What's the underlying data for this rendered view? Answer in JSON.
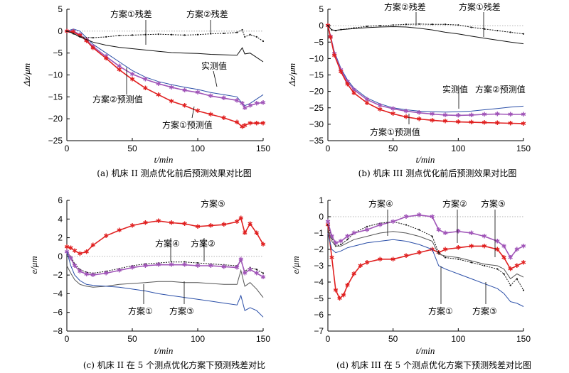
{
  "chart_data": [
    {
      "type": "line",
      "caption": "(a) 机床 II 测点优化前后预测效果对比图",
      "xlabel": "t/min",
      "ylabel": "Δz/μm",
      "xlim": [
        0,
        150
      ],
      "ylim": [
        -25,
        5
      ],
      "xticks": [
        0,
        50,
        100,
        150
      ],
      "yticks": [
        5,
        0,
        -5,
        -10,
        -15,
        -20,
        -25
      ],
      "series": [
        {
          "name": "实测值",
          "color": "#2b4fa8",
          "marker": "none",
          "x": [
            0,
            5,
            10,
            15,
            20,
            30,
            40,
            50,
            60,
            70,
            80,
            90,
            100,
            110,
            120,
            130,
            134,
            136,
            140,
            145,
            150
          ],
          "y": [
            0,
            0.5,
            0,
            -1.5,
            -3,
            -5,
            -7,
            -9,
            -10.5,
            -11.5,
            -12.2,
            -12.8,
            -13.3,
            -14,
            -14.5,
            -15,
            -16.5,
            -17,
            -16.5,
            -15.5,
            -14.5
          ]
        },
        {
          "name": "方案②预测值",
          "color": "#a055b8",
          "marker": "star",
          "x": [
            0,
            5,
            10,
            15,
            20,
            30,
            40,
            50,
            60,
            70,
            80,
            90,
            100,
            110,
            120,
            130,
            134,
            136,
            140,
            145,
            150
          ],
          "y": [
            0,
            0,
            -0.8,
            -2,
            -3.5,
            -5.8,
            -8,
            -9.8,
            -11,
            -12,
            -12.8,
            -13.5,
            -14,
            -14.8,
            -15.3,
            -15.8,
            -16.5,
            -17.5,
            -17,
            -16.5,
            -16.3
          ]
        },
        {
          "name": "方案①预测值",
          "color": "#e02020",
          "marker": "star",
          "x": [
            0,
            5,
            10,
            15,
            20,
            30,
            40,
            50,
            60,
            70,
            80,
            90,
            100,
            110,
            120,
            130,
            134,
            136,
            140,
            145,
            150
          ],
          "y": [
            0,
            -0.2,
            -1,
            -2.2,
            -3.8,
            -6.2,
            -8.8,
            -11,
            -13,
            -14.5,
            -16,
            -17,
            -18.2,
            -19,
            -19.8,
            -20.8,
            -21.8,
            -21.5,
            -21,
            -21,
            -21
          ]
        },
        {
          "name": "方案①残差",
          "color": "#111111",
          "marker": "none",
          "x": [
            0,
            5,
            10,
            20,
            30,
            40,
            50,
            60,
            70,
            80,
            90,
            100,
            110,
            120,
            130,
            134,
            136,
            140,
            145,
            150
          ],
          "y": [
            0,
            -0.5,
            -1.3,
            -2.5,
            -3.2,
            -3.7,
            -4,
            -4.3,
            -4.6,
            -4.9,
            -5,
            -5.1,
            -5.3,
            -5.4,
            -5.5,
            -3.8,
            -5.2,
            -5,
            -6,
            -7
          ]
        },
        {
          "name": "方案②残差",
          "color": "#111111",
          "marker": "dot",
          "x": [
            0,
            5,
            10,
            20,
            30,
            40,
            50,
            60,
            70,
            80,
            90,
            100,
            110,
            120,
            130,
            134,
            136,
            140,
            145,
            150
          ],
          "y": [
            0,
            -0.6,
            -1.3,
            -1.5,
            -1.3,
            -1,
            -0.9,
            -0.8,
            -0.7,
            -0.8,
            -0.9,
            -0.8,
            -0.6,
            -0.5,
            -0.3,
            0.3,
            -1.3,
            -0.8,
            -1.3,
            -2.3
          ]
        }
      ],
      "annotations": [
        "方案①残差",
        "方案②残差",
        "实测值",
        "方案②预测值",
        "方案①预测值"
      ]
    },
    {
      "type": "line",
      "caption": "(b) 机床 III 测点优化前后预测效果对比图",
      "xlabel": "t/min",
      "ylabel": "Δz/μm",
      "xlim": [
        0,
        150
      ],
      "ylim": [
        -35,
        5
      ],
      "xticks": [
        0,
        50,
        100,
        150
      ],
      "yticks": [
        5,
        0,
        -5,
        -10,
        -15,
        -20,
        -25,
        -30,
        -35
      ],
      "series": [
        {
          "name": "实测值",
          "color": "#2b4fa8",
          "marker": "none",
          "x": [
            0,
            2,
            5,
            10,
            15,
            20,
            30,
            40,
            50,
            60,
            70,
            80,
            90,
            100,
            110,
            120,
            130,
            140,
            150
          ],
          "y": [
            0,
            -3,
            -8,
            -13,
            -16.5,
            -19,
            -22,
            -23.8,
            -25,
            -25.6,
            -26,
            -26.2,
            -26.3,
            -26.2,
            -26,
            -25.6,
            -25.2,
            -24.8,
            -24.5
          ]
        },
        {
          "name": "方案②预测值",
          "color": "#a055b8",
          "marker": "star",
          "x": [
            0,
            2,
            5,
            10,
            15,
            20,
            30,
            40,
            50,
            60,
            70,
            80,
            90,
            100,
            110,
            120,
            130,
            140,
            150
          ],
          "y": [
            0,
            -3.3,
            -8.5,
            -13.5,
            -17,
            -19.5,
            -22.5,
            -24.3,
            -25.3,
            -26,
            -26.5,
            -26.9,
            -27.2,
            -27.3,
            -27.2,
            -27,
            -26.9,
            -27,
            -27
          ]
        },
        {
          "name": "方案①预测值",
          "color": "#e02020",
          "marker": "star",
          "x": [
            0,
            2,
            5,
            10,
            15,
            20,
            30,
            40,
            50,
            60,
            70,
            80,
            90,
            100,
            110,
            120,
            130,
            140,
            150
          ],
          "y": [
            0,
            -3.5,
            -9,
            -14,
            -17.8,
            -20.5,
            -23.5,
            -25.5,
            -26.8,
            -27.8,
            -28.4,
            -28.8,
            -29.1,
            -29.3,
            -29.4,
            -29.5,
            -29.6,
            -29.7,
            -29.8
          ]
        },
        {
          "name": "方案②残差",
          "color": "#111111",
          "marker": "dot",
          "x": [
            0,
            3,
            6,
            10,
            20,
            30,
            40,
            50,
            60,
            70,
            80,
            90,
            100,
            110,
            120,
            130,
            140,
            150
          ],
          "y": [
            0,
            -1.3,
            -1.5,
            -1.2,
            -0.7,
            -0.2,
            0,
            0.2,
            0.4,
            0.5,
            0.4,
            0.4,
            0.2,
            -0.5,
            -1,
            -1.5,
            -2,
            -2.5
          ]
        },
        {
          "name": "方案①残差",
          "color": "#111111",
          "marker": "none",
          "x": [
            0,
            3,
            6,
            10,
            20,
            30,
            40,
            50,
            60,
            70,
            80,
            90,
            100,
            110,
            120,
            130,
            140,
            150
          ],
          "y": [
            0,
            -1.3,
            -1.4,
            -1.2,
            -0.9,
            -0.6,
            -0.4,
            -0.3,
            -0.4,
            -0.8,
            -1.3,
            -2,
            -2.5,
            -3.2,
            -3.8,
            -4.4,
            -5,
            -5.5
          ]
        }
      ],
      "annotations": [
        "方案②残差",
        "方案①残差",
        "实测值",
        "方案②预测值",
        "方案①预测值"
      ]
    },
    {
      "type": "line",
      "caption": "(c) 机床 II 在 5 个测点优化方案下预测残差对比",
      "xlabel": "t/min",
      "ylabel": "e/μm",
      "xlim": [
        0,
        150
      ],
      "ylim": [
        -8,
        6
      ],
      "xticks": [
        0,
        50,
        100,
        150
      ],
      "yticks": [
        6,
        4,
        2,
        0,
        -2,
        -4,
        -6,
        -8
      ],
      "series": [
        {
          "name": "方案⑤",
          "color": "#e02020",
          "marker": "star",
          "x": [
            0,
            3,
            6,
            10,
            15,
            20,
            30,
            40,
            50,
            60,
            70,
            80,
            90,
            100,
            110,
            120,
            130,
            133,
            136,
            140,
            145,
            150
          ],
          "y": [
            1,
            0.9,
            0.6,
            0.3,
            0.5,
            1.2,
            2.2,
            2.8,
            3.3,
            3.6,
            3.8,
            3.6,
            3.5,
            3.2,
            3.3,
            3.4,
            3.7,
            4.1,
            2.5,
            3.5,
            2.5,
            1.3
          ]
        },
        {
          "name": "方案④",
          "color": "#111111",
          "marker": "dot",
          "x": [
            0,
            3,
            6,
            10,
            15,
            20,
            30,
            40,
            50,
            60,
            70,
            80,
            90,
            100,
            110,
            120,
            130,
            133,
            136,
            140,
            145,
            150
          ],
          "y": [
            0.5,
            0,
            -0.8,
            -1.4,
            -1.7,
            -1.8,
            -1.6,
            -1.3,
            -1,
            -0.8,
            -0.7,
            -0.6,
            -0.6,
            -0.7,
            -0.8,
            -0.9,
            -1,
            -0.5,
            -1.6,
            -1.2,
            -1.4,
            -1.8
          ]
        },
        {
          "name": "方案②",
          "color": "#a055b8",
          "marker": "star",
          "x": [
            0,
            3,
            6,
            10,
            15,
            20,
            30,
            40,
            50,
            60,
            70,
            80,
            90,
            100,
            110,
            120,
            130,
            133,
            136,
            140,
            145,
            150
          ],
          "y": [
            0.5,
            -0.2,
            -1,
            -1.6,
            -1.9,
            -2,
            -1.8,
            -1.5,
            -1.2,
            -1,
            -0.9,
            -0.9,
            -0.9,
            -1,
            -1,
            -1.1,
            -1.2,
            -0.3,
            -1.8,
            -1.4,
            -1.8,
            -2.2
          ]
        },
        {
          "name": "方案①",
          "color": "#555555",
          "marker": "none",
          "x": [
            0,
            3,
            6,
            10,
            15,
            20,
            30,
            40,
            50,
            60,
            70,
            80,
            90,
            100,
            110,
            120,
            130,
            133,
            136,
            140,
            145,
            150
          ],
          "y": [
            -1,
            -1.8,
            -2.5,
            -3,
            -3.2,
            -3.3,
            -3.2,
            -3,
            -2.9,
            -2.8,
            -2.7,
            -2.7,
            -2.8,
            -2.8,
            -2.9,
            -3,
            -3,
            -1.5,
            -3.2,
            -2.8,
            -3.5,
            -4.4
          ]
        },
        {
          "name": "方案③",
          "color": "#2b4fa8",
          "marker": "none",
          "x": [
            0,
            3,
            6,
            10,
            15,
            20,
            30,
            40,
            50,
            60,
            70,
            80,
            90,
            100,
            110,
            120,
            130,
            133,
            136,
            140,
            145,
            150
          ],
          "y": [
            0.5,
            -1,
            -2,
            -2.6,
            -3,
            -3.1,
            -3.2,
            -3.3,
            -3.5,
            -3.7,
            -4,
            -4.2,
            -4.4,
            -4.6,
            -4.8,
            -5,
            -5.2,
            -4.2,
            -5.8,
            -5.5,
            -5.8,
            -6.5
          ]
        }
      ],
      "annotations": [
        "方案⑤",
        "方案④",
        "方案②",
        "方案①",
        "方案③"
      ]
    },
    {
      "type": "line",
      "caption": "(d) 机床 III 在 5 个测点优化方案下预测残差对比图",
      "xlabel": "t/min",
      "ylabel": "e/μm",
      "xlim": [
        0,
        150
      ],
      "ylim": [
        -7,
        1
      ],
      "xticks": [
        0,
        50,
        100,
        150
      ],
      "yticks": [
        1,
        0,
        -1,
        -2,
        -3,
        -4,
        -5,
        -6,
        -7
      ],
      "series": [
        {
          "name": "方案⑤",
          "color": "#e02020",
          "marker": "star",
          "x": [
            0,
            3,
            6,
            9,
            12,
            15,
            20,
            25,
            30,
            40,
            50,
            60,
            70,
            80,
            85,
            90,
            100,
            110,
            120,
            130,
            135,
            140,
            145,
            150
          ],
          "y": [
            -0.5,
            -2.5,
            -4.5,
            -5,
            -4.8,
            -4.2,
            -3.5,
            -3,
            -2.8,
            -2.6,
            -2.6,
            -2.4,
            -2.2,
            -2,
            -2.2,
            -2,
            -1.9,
            -1.8,
            -1.8,
            -2,
            -2.5,
            -3.2,
            -3,
            -2.8
          ]
        },
        {
          "name": "方案④",
          "color": "#111111",
          "marker": "dot",
          "x": [
            0,
            3,
            6,
            10,
            15,
            20,
            30,
            40,
            50,
            60,
            70,
            80,
            85,
            90,
            100,
            110,
            120,
            130,
            135,
            140,
            145,
            150
          ],
          "y": [
            -0.5,
            -1.3,
            -1.8,
            -1.7,
            -1.4,
            -1,
            -0.6,
            -0.4,
            -0.3,
            -0.5,
            -0.8,
            -1.2,
            -2.2,
            -2.5,
            -2.6,
            -2.8,
            -3,
            -3.2,
            -3.5,
            -4.2,
            -3.8,
            -4.5
          ]
        },
        {
          "name": "方案②",
          "color": "#a055b8",
          "marker": "star",
          "x": [
            0,
            3,
            6,
            10,
            15,
            20,
            30,
            40,
            50,
            60,
            70,
            80,
            85,
            90,
            100,
            110,
            120,
            130,
            135,
            140,
            145,
            150
          ],
          "y": [
            -0.3,
            -1.2,
            -1.6,
            -1.5,
            -1.2,
            -1,
            -0.8,
            -0.5,
            -0.3,
            0,
            0.1,
            0,
            -0.8,
            -1,
            -0.9,
            -1,
            -1.2,
            -1.5,
            -1.8,
            -2.5,
            -2,
            -1.8
          ]
        },
        {
          "name": "方案①",
          "color": "#555555",
          "marker": "none",
          "x": [
            0,
            3,
            6,
            10,
            15,
            20,
            30,
            40,
            50,
            60,
            70,
            80,
            85,
            90,
            100,
            110,
            120,
            130,
            135,
            140,
            145,
            150
          ],
          "y": [
            -0.8,
            -1.5,
            -1.8,
            -1.8,
            -1.6,
            -1.4,
            -1.2,
            -1,
            -0.9,
            -1,
            -1.2,
            -1.5,
            -2.3,
            -2.4,
            -2.5,
            -2.7,
            -2.9,
            -3,
            -3.2,
            -3.8,
            -3.5,
            -3.7
          ]
        },
        {
          "name": "方案③",
          "color": "#2b4fa8",
          "marker": "none",
          "x": [
            0,
            3,
            6,
            10,
            15,
            20,
            30,
            40,
            50,
            60,
            70,
            80,
            85,
            90,
            100,
            110,
            120,
            130,
            135,
            140,
            145,
            150
          ],
          "y": [
            -1,
            -2,
            -2.2,
            -2.1,
            -1.9,
            -1.8,
            -1.6,
            -1.5,
            -1.4,
            -1.5,
            -1.7,
            -2,
            -3,
            -3.2,
            -3.5,
            -3.8,
            -4.1,
            -4.4,
            -4.7,
            -5.2,
            -5.3,
            -5.5
          ]
        }
      ],
      "annotations": [
        "方案④",
        "方案②",
        "方案⑤",
        "方案①",
        "方案③"
      ]
    }
  ]
}
